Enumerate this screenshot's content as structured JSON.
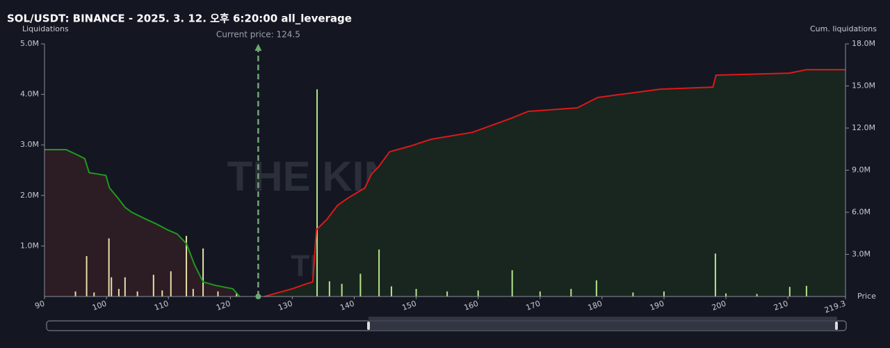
{
  "chart_data": {
    "type": "liquidation-map",
    "title": "SOL/USDT: BINANCE - 2025. 3. 12. 오후 6:20:00 all_leverage",
    "y_label": "Liquidations",
    "y2_label": "Cum. liquidations",
    "x_label": "Price",
    "annotation": "Current price: 124.5",
    "current_price": 124.5,
    "current_price_color": "#6fa872",
    "watermark": "THE KINGFISHER.io",
    "grid": false,
    "xlim": [
      90,
      219.3
    ],
    "xticks": [
      90,
      100,
      110,
      120,
      130,
      140,
      150,
      160,
      170,
      180,
      190,
      200,
      210,
      219.3
    ],
    "ylim": [
      0,
      5000000
    ],
    "yticks": [
      {
        "value": 1000000,
        "label": "1.0M"
      },
      {
        "value": 2000000,
        "label": "2.0M"
      },
      {
        "value": 3000000,
        "label": "3.0M"
      },
      {
        "value": 4000000,
        "label": "4.0M"
      },
      {
        "value": 5000000,
        "label": "5.0M"
      }
    ],
    "y2lim": [
      0,
      18000000
    ],
    "y2ticks": [
      {
        "value": 3000000,
        "label": "3.0M"
      },
      {
        "value": 6000000,
        "label": "6.0M"
      },
      {
        "value": 9000000,
        "label": "9.0M"
      },
      {
        "value": 12000000,
        "label": "12.0M"
      },
      {
        "value": 15000000,
        "label": "15.0M"
      },
      {
        "value": 18000000,
        "label": "18.0M"
      }
    ],
    "series": [
      {
        "kind": "bar",
        "color": "#e6e0a6",
        "x": [
          95,
          96.8,
          98,
          100.4,
          100.8,
          102,
          103,
          105,
          107.6,
          109,
          110.4,
          112.9,
          114,
          115.6,
          118,
          121
        ],
        "values": [
          100000,
          800000,
          80000,
          1150000,
          380000,
          150000,
          380000,
          100000,
          430000,
          120000,
          500000,
          1200000,
          150000,
          950000,
          100000,
          80000
        ]
      },
      {
        "kind": "bar",
        "color": "#b6e58c",
        "x": [
          134,
          136,
          138,
          141,
          144,
          146,
          150,
          155,
          160,
          165.5,
          170,
          175,
          179.1,
          185,
          190,
          198.3,
          200,
          205,
          210.3,
          213
        ],
        "values": [
          4100000,
          300000,
          250000,
          450000,
          930000,
          200000,
          150000,
          100000,
          120000,
          520000,
          100000,
          150000,
          320000,
          80000,
          100000,
          850000,
          60000,
          50000,
          190000,
          210000
        ]
      },
      {
        "kind": "line",
        "axis": "y2",
        "color": "#1f9a1f",
        "fill": "#2c1c24",
        "x": [
          90,
          93.5,
          95.2,
          96.5,
          97.2,
          98.5,
          99.9,
          100.5,
          101.9,
          103,
          104.1,
          106.4,
          108.1,
          109.8,
          111.4,
          112.9,
          114.2,
          115.6,
          117.6,
          120.4,
          121.5
        ],
        "values": [
          10460000,
          10460000,
          10110000,
          9820000,
          8820000,
          8730000,
          8630000,
          7730000,
          6990000,
          6350000,
          6000000,
          5500000,
          5160000,
          4760000,
          4460000,
          3770000,
          2280000,
          1040000,
          790000,
          550000,
          0
        ]
      },
      {
        "kind": "line",
        "axis": "y2",
        "color": "#e01818",
        "fill": "#18261f",
        "x": [
          125.5,
          130,
          132.2,
          133.3,
          133.9,
          135.6,
          137.3,
          138.9,
          141.7,
          142.8,
          143.9,
          145.7,
          149,
          152.4,
          159.1,
          165.3,
          168.1,
          176,
          179.3,
          189.4,
          197.9,
          198.4,
          210.2,
          213,
          219.3
        ],
        "values": [
          0,
          550000,
          890000,
          1040000,
          4760000,
          5500000,
          6490000,
          6990000,
          7730000,
          8730000,
          9220000,
          10310000,
          10710000,
          11200000,
          11700000,
          12690000,
          13190000,
          13440000,
          14180000,
          14770000,
          14920000,
          15770000,
          15910000,
          16160000,
          16160000
        ]
      }
    ]
  }
}
